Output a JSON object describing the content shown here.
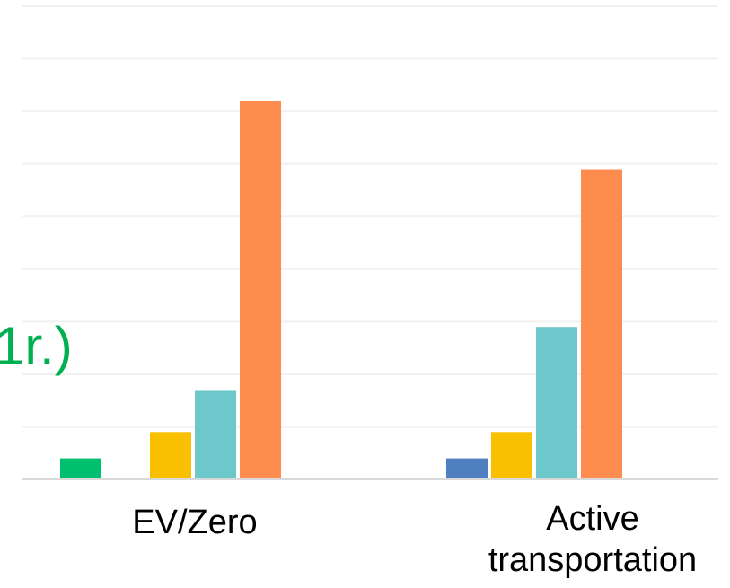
{
  "left_cropped_text": "1r.)",
  "colors": {
    "grid": "#f1f1f1",
    "baseline": "#d9d9d9",
    "cropped_text": "#00b050",
    "category_text": "#000000"
  },
  "chart_data": {
    "type": "bar",
    "title": "",
    "xlabel": "",
    "ylabel": "",
    "ylim": [
      0,
      9
    ],
    "grid": true,
    "categories": [
      {
        "label": "EV/Zero",
        "lines": [
          "EV/Zero"
        ]
      },
      {
        "label": "Active transportation",
        "lines": [
          "Active",
          "transportation"
        ]
      }
    ],
    "series": [
      {
        "color": "#00c06f",
        "values": [
          0.4,
          null
        ]
      },
      {
        "color": "#4f7fbf",
        "values": [
          null,
          0.4
        ]
      },
      {
        "color": "#f8c000",
        "values": [
          0.9,
          0.9
        ]
      },
      {
        "color": "#6dc8cb",
        "values": [
          1.7,
          2.9
        ]
      },
      {
        "color": "#ff8c4f",
        "values": [
          7.2,
          5.9
        ]
      }
    ]
  }
}
